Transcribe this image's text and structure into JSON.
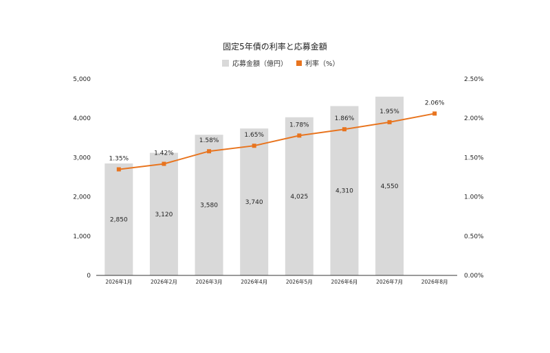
{
  "chart_data": {
    "type": "bar",
    "title": "固定5年債の利率と応募金額",
    "categories": [
      "2026年1月",
      "2026年2月",
      "2026年3月",
      "2026年4月",
      "2026年5月",
      "2026年6月",
      "2026年7月",
      "2026年8月"
    ],
    "series": [
      {
        "name": "応募金額（億円）",
        "type": "bar",
        "axis": "left",
        "color": "#d9d9d9",
        "values": [
          2850,
          3120,
          3580,
          3740,
          4025,
          4310,
          4550,
          null
        ],
        "labels": [
          "2,850",
          "3,120",
          "3,580",
          "3,740",
          "4,025",
          "4,310",
          "4,550",
          ""
        ]
      },
      {
        "name": "利率（%）",
        "type": "line",
        "axis": "right",
        "color": "#e8741e",
        "values": [
          1.35,
          1.42,
          1.58,
          1.65,
          1.78,
          1.86,
          1.95,
          2.06
        ],
        "labels": [
          "1.35%",
          "1.42%",
          "1.58%",
          "1.65%",
          "1.78%",
          "1.86%",
          "1.95%",
          "2.06%"
        ]
      }
    ],
    "y_left": {
      "lim": [
        0,
        5000
      ],
      "ticks": [
        0,
        1000,
        2000,
        3000,
        4000,
        5000
      ],
      "tick_labels": [
        "0",
        "1,000",
        "2,000",
        "3,000",
        "4,000",
        "5,000"
      ]
    },
    "y_right": {
      "lim": [
        0,
        2.5
      ],
      "ticks": [
        0,
        0.5,
        1.0,
        1.5,
        2.0,
        2.5
      ],
      "tick_labels": [
        "0.00%",
        "0.50%",
        "1.00%",
        "1.50%",
        "2.00%",
        "2.50%"
      ]
    },
    "grid": false,
    "legend": "top-center"
  }
}
